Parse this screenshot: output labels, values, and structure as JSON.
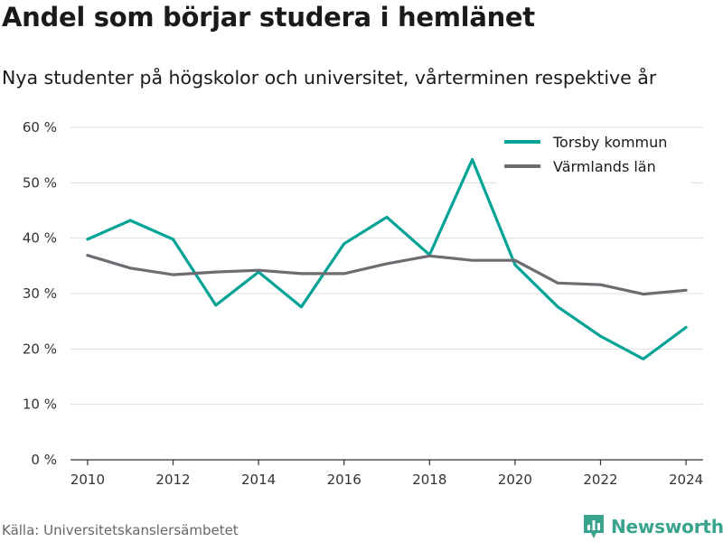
{
  "title": "Andel som börjar studera i hemlänet",
  "subtitle": "Nya studenter på högskolor och universitet, vårterminen respektive år",
  "source": "Källa: Universitetskanslersämbetet",
  "brand": {
    "name": "Newsworthy",
    "icon": "newsworthy-logo-icon",
    "color": "#3aa38e"
  },
  "chart_data": {
    "type": "line",
    "x": [
      2010,
      2011,
      2012,
      2013,
      2014,
      2015,
      2016,
      2017,
      2018,
      2019,
      2020,
      2021,
      2022,
      2023,
      2024
    ],
    "series": [
      {
        "name": "Torsby kommun",
        "color": "#00a396",
        "values": [
          39.8,
          43.2,
          39.8,
          27.9,
          33.9,
          27.6,
          39.0,
          43.8,
          37.0,
          54.2,
          35.2,
          27.6,
          22.3,
          18.2,
          23.9
        ]
      },
      {
        "name": "Värmlands län",
        "color": "#6e6b73",
        "values": [
          36.9,
          34.6,
          33.4,
          33.9,
          34.2,
          33.6,
          33.6,
          35.4,
          36.8,
          36.0,
          36.0,
          31.9,
          31.6,
          29.9,
          30.6
        ]
      }
    ],
    "xticks": [
      2010,
      2012,
      2014,
      2016,
      2018,
      2020,
      2022,
      2024
    ],
    "xtick_labels": [
      "2010",
      "2012",
      "2014",
      "2016",
      "2018",
      "2020",
      "2022",
      "2024"
    ],
    "yticks": [
      0,
      10,
      20,
      30,
      40,
      50,
      60
    ],
    "ytick_labels": [
      "0 %",
      "10 %",
      "20 %",
      "30 %",
      "40 %",
      "50 %",
      "60 %"
    ],
    "ylim": [
      0,
      60
    ],
    "xlim": [
      2009.6,
      2024.4
    ],
    "grid": true,
    "legend_position": "top-right"
  }
}
